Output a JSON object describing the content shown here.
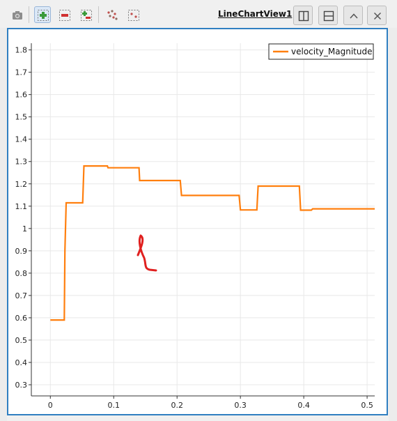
{
  "toolbar": {
    "view_title": "LineChartView1",
    "buttons": [
      "camera-icon",
      "zoom-in-icon",
      "zoom-out-icon",
      "zoom-to-box-icon",
      "select-points-icon",
      "select-box-icon"
    ],
    "window_buttons": [
      "split-horizontal-icon",
      "split-vertical-icon",
      "maximize-icon",
      "close-icon"
    ]
  },
  "annotation": {
    "color": "#e0201f",
    "glyph": "red-handwritten-mark"
  },
  "chart_data": {
    "type": "line",
    "title": "",
    "xlabel": "",
    "ylabel": "",
    "xlim": [
      -0.03,
      0.512
    ],
    "ylim": [
      0.25,
      1.83
    ],
    "xticks": [
      0,
      0.1,
      0.2,
      0.3,
      0.4,
      0.5
    ],
    "xtick_labels": [
      "0",
      "0.1",
      "0.2",
      "0.3",
      "0.4",
      "0.5"
    ],
    "yticks": [
      0.3,
      0.4,
      0.5,
      0.6,
      0.7,
      0.8,
      0.9,
      1.0,
      1.1,
      1.2,
      1.3,
      1.4,
      1.5,
      1.6,
      1.7,
      1.8
    ],
    "ytick_labels": [
      "0.3",
      "0.4",
      "0.5",
      "0.6",
      "0.7",
      "0.8",
      "0.9",
      "1",
      "1.1",
      "1.2",
      "1.3",
      "1.4",
      "1.5",
      "1.6",
      "1.7",
      "1.8"
    ],
    "grid": true,
    "legend_position": "top-right",
    "series": [
      {
        "name": "velocity_Magnitude",
        "color": "#ff7f0e",
        "x": [
          0,
          0.022,
          0.023,
          0.025,
          0.051,
          0.053,
          0.09,
          0.091,
          0.14,
          0.141,
          0.205,
          0.207,
          0.298,
          0.3,
          0.326,
          0.328,
          0.393,
          0.395,
          0.412,
          0.414,
          0.512
        ],
        "y": [
          0.59,
          0.59,
          0.9,
          1.115,
          1.115,
          1.28,
          1.28,
          1.272,
          1.272,
          1.215,
          1.215,
          1.148,
          1.148,
          1.083,
          1.083,
          1.19,
          1.19,
          1.082,
          1.082,
          1.088,
          1.088
        ]
      }
    ]
  }
}
